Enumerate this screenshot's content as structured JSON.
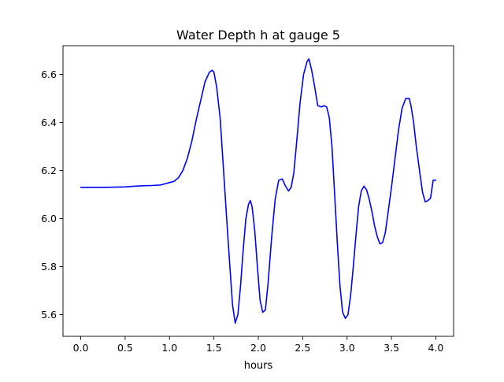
{
  "chart_data": {
    "type": "line",
    "title": "Water Depth h at gauge 5",
    "xlabel": "hours",
    "ylabel": "",
    "xlim": [
      -0.2,
      4.2
    ],
    "ylim": [
      5.51,
      6.72
    ],
    "xticks": [
      0.0,
      0.5,
      1.0,
      1.5,
      2.0,
      2.5,
      3.0,
      3.5,
      4.0
    ],
    "xtick_labels": [
      "0.0",
      "0.5",
      "1.0",
      "1.5",
      "2.0",
      "2.5",
      "3.0",
      "3.5",
      "4.0"
    ],
    "yticks": [
      5.6,
      5.8,
      6.0,
      6.2,
      6.4,
      6.6
    ],
    "ytick_labels": [
      "5.6",
      "5.8",
      "6.0",
      "6.2",
      "6.4",
      "6.6"
    ],
    "grid": false,
    "series": [
      {
        "name": "",
        "color": "#0000ff",
        "x": [
          0.0,
          0.25,
          0.5,
          0.6,
          0.7,
          0.8,
          0.9,
          1.0,
          1.05,
          1.1,
          1.15,
          1.2,
          1.25,
          1.3,
          1.35,
          1.4,
          1.45,
          1.48,
          1.5,
          1.53,
          1.57,
          1.6,
          1.64,
          1.68,
          1.71,
          1.74,
          1.77,
          1.8,
          1.83,
          1.86,
          1.89,
          1.91,
          1.93,
          1.96,
          1.99,
          2.02,
          2.05,
          2.08,
          2.11,
          2.15,
          2.19,
          2.23,
          2.27,
          2.3,
          2.34,
          2.37,
          2.4,
          2.43,
          2.47,
          2.51,
          2.55,
          2.57,
          2.6,
          2.63,
          2.67,
          2.71,
          2.74,
          2.77,
          2.8,
          2.83,
          2.86,
          2.89,
          2.92,
          2.95,
          2.98,
          3.01,
          3.04,
          3.07,
          3.1,
          3.13,
          3.16,
          3.19,
          3.22,
          3.25,
          3.28,
          3.31,
          3.34,
          3.37,
          3.4,
          3.43,
          3.46,
          3.5,
          3.54,
          3.58,
          3.62,
          3.66,
          3.7,
          3.72,
          3.75,
          3.78,
          3.82,
          3.85,
          3.88,
          3.91,
          3.94,
          3.97,
          4.0
        ],
        "y": [
          6.13,
          6.13,
          6.132,
          6.135,
          6.137,
          6.138,
          6.14,
          6.15,
          6.155,
          6.17,
          6.2,
          6.25,
          6.32,
          6.41,
          6.49,
          6.57,
          6.61,
          6.618,
          6.61,
          6.55,
          6.42,
          6.25,
          6.02,
          5.8,
          5.64,
          5.565,
          5.6,
          5.72,
          5.87,
          6.0,
          6.06,
          6.075,
          6.05,
          5.95,
          5.8,
          5.66,
          5.61,
          5.62,
          5.73,
          5.92,
          6.08,
          6.16,
          6.165,
          6.14,
          6.115,
          6.13,
          6.19,
          6.31,
          6.48,
          6.6,
          6.655,
          6.665,
          6.62,
          6.56,
          6.47,
          6.465,
          6.47,
          6.465,
          6.42,
          6.3,
          6.1,
          5.9,
          5.72,
          5.61,
          5.585,
          5.6,
          5.68,
          5.8,
          5.93,
          6.05,
          6.115,
          6.135,
          6.12,
          6.08,
          6.03,
          5.97,
          5.925,
          5.895,
          5.9,
          5.94,
          6.02,
          6.13,
          6.25,
          6.37,
          6.46,
          6.5,
          6.5,
          6.47,
          6.4,
          6.3,
          6.19,
          6.11,
          6.07,
          6.075,
          6.085,
          6.16,
          6.16
        ]
      }
    ]
  }
}
